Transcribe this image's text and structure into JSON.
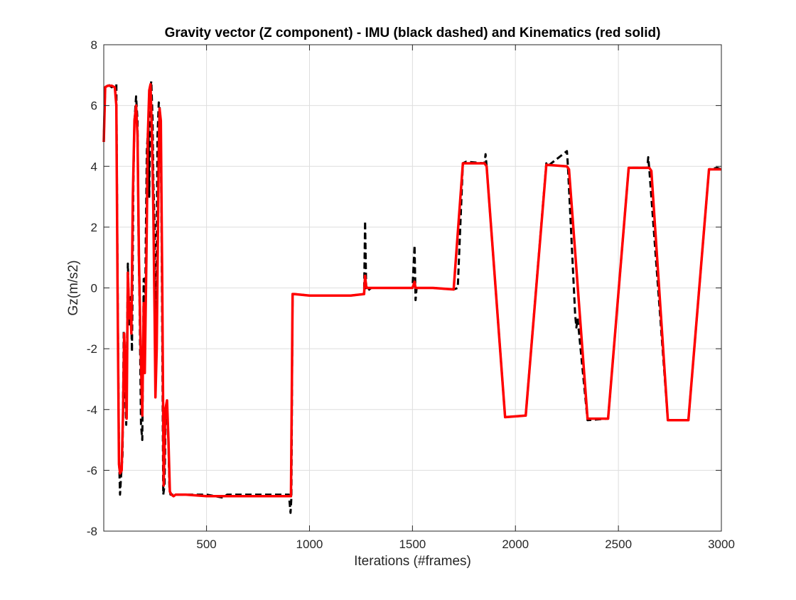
{
  "chart_data": {
    "type": "line",
    "title": "Gravity vector (Z component) - IMU (black dashed) and Kinematics (red solid)",
    "xlabel": "Iterations (#frames)",
    "ylabel": "Gz(m/s2)",
    "xlim": [
      1,
      3000
    ],
    "ylim": [
      -8,
      8
    ],
    "xticks": [
      500,
      1000,
      1500,
      2000,
      2500,
      3000
    ],
    "yticks": [
      -8,
      -6,
      -4,
      -2,
      0,
      2,
      4,
      6,
      8
    ],
    "grid": true,
    "legend": "none",
    "series": [
      {
        "color": "#000000",
        "style": "dashed",
        "x": [
          1,
          8,
          20,
          40,
          55,
          62,
          68,
          75,
          80,
          85,
          92,
          98,
          102,
          110,
          118,
          125,
          132,
          138,
          145,
          150,
          158,
          165,
          170,
          175,
          182,
          188,
          195,
          200,
          205,
          210,
          218,
          222,
          228,
          232,
          238,
          242,
          248,
          252,
          255,
          258,
          262,
          268,
          272,
          278,
          283,
          290,
          296,
          302,
          308,
          315,
          320,
          325,
          330,
          335,
          340,
          345,
          350,
          400,
          500,
          580,
          600,
          700,
          800,
          900,
          908,
          912,
          918,
          925,
          1000,
          1100,
          1200,
          1265,
          1270,
          1275,
          1280,
          1300,
          1400,
          1500,
          1510,
          1515,
          1520,
          1600,
          1700,
          1720,
          1745,
          1760,
          1850,
          1855,
          1860,
          1950,
          2050,
          2150,
          2155,
          2250,
          2255,
          2290,
          2296,
          2302,
          2350,
          2450,
          2550,
          2640,
          2645,
          2650,
          2740,
          2840,
          2940,
          2980,
          3000
        ],
        "y": [
          4.8,
          6.6,
          6.7,
          6.6,
          6.7,
          6.7,
          0.5,
          -5.5,
          -6.8,
          -6.2,
          -5.5,
          -1.4,
          -2.8,
          -4.5,
          0.8,
          -1.2,
          -0.3,
          -2.1,
          3.5,
          5.5,
          6.3,
          5.5,
          1.5,
          -0.5,
          -4.5,
          -5.0,
          0.3,
          -2.5,
          1.5,
          4.5,
          5.5,
          3.0,
          6.6,
          6.8,
          5.5,
          3.5,
          2.0,
          -3.5,
          -1.5,
          1.0,
          5.0,
          6.1,
          6.0,
          5.0,
          0.5,
          -6.8,
          -6.5,
          -4.0,
          -3.8,
          -5.0,
          -6.6,
          -6.8,
          -6.8,
          -6.8,
          -6.8,
          -6.8,
          -6.8,
          -6.8,
          -6.8,
          -6.9,
          -6.8,
          -6.8,
          -6.8,
          -6.8,
          -7.4,
          -6.9,
          -0.2,
          -0.2,
          -0.25,
          -0.25,
          -0.25,
          -0.2,
          2.2,
          0.0,
          -0.1,
          0.0,
          0.0,
          0.0,
          1.4,
          -0.4,
          0.0,
          0.0,
          -0.05,
          0.0,
          4.1,
          4.15,
          4.1,
          4.4,
          4.0,
          -4.25,
          -4.2,
          4.1,
          4.0,
          4.5,
          4.0,
          -0.9,
          -1.3,
          -1.0,
          -4.35,
          -4.3,
          3.95,
          3.95,
          4.3,
          3.9,
          -4.35,
          -4.35,
          3.9,
          3.95,
          3.9
        ]
      },
      {
        "color": "#ff0000",
        "style": "solid",
        "x": [
          1,
          8,
          20,
          40,
          55,
          62,
          68,
          75,
          80,
          88,
          95,
          100,
          105,
          112,
          118,
          125,
          130,
          135,
          142,
          150,
          158,
          165,
          172,
          180,
          188,
          195,
          200,
          208,
          215,
          222,
          228,
          235,
          242,
          248,
          252,
          258,
          262,
          268,
          272,
          278,
          285,
          292,
          300,
          308,
          315,
          322,
          330,
          340,
          350,
          400,
          500,
          600,
          700,
          800,
          900,
          910,
          918,
          925,
          1000,
          1100,
          1200,
          1265,
          1270,
          1275,
          1280,
          1300,
          1400,
          1500,
          1510,
          1515,
          1520,
          1600,
          1700,
          1745,
          1760,
          1850,
          1860,
          1950,
          2050,
          2150,
          2250,
          2260,
          2350,
          2450,
          2550,
          2650,
          2660,
          2740,
          2840,
          2940,
          2950,
          3000
        ],
        "y": [
          4.8,
          6.6,
          6.65,
          6.65,
          6.6,
          6.0,
          0.0,
          -5.8,
          -6.1,
          -6.0,
          -4.0,
          -1.5,
          -2.5,
          -4.3,
          0.5,
          -1.0,
          -0.5,
          -1.5,
          3.0,
          5.5,
          6.0,
          5.0,
          1.0,
          -2.0,
          -4.2,
          -0.5,
          -2.8,
          1.0,
          5.0,
          6.5,
          6.7,
          5.0,
          2.5,
          -1.0,
          -3.6,
          -2.0,
          0.5,
          4.5,
          5.9,
          5.5,
          0.0,
          -6.5,
          -4.0,
          -3.7,
          -5.0,
          -6.7,
          -6.8,
          -6.85,
          -6.8,
          -6.8,
          -6.85,
          -6.85,
          -6.85,
          -6.85,
          -6.85,
          -6.85,
          -0.2,
          -0.2,
          -0.25,
          -0.25,
          -0.25,
          -0.2,
          0.4,
          0.05,
          0.0,
          0.0,
          0.0,
          0.0,
          0.2,
          0.0,
          0.0,
          0.0,
          -0.05,
          4.1,
          4.1,
          4.1,
          4.0,
          -4.25,
          -4.2,
          4.05,
          4.0,
          3.9,
          -4.3,
          -4.3,
          3.95,
          3.95,
          3.85,
          -4.35,
          -4.35,
          3.9,
          3.9,
          3.9
        ]
      }
    ]
  }
}
